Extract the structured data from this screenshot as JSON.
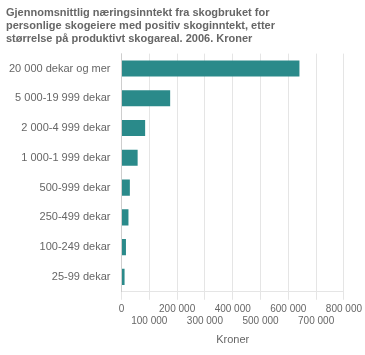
{
  "chart_data": {
    "type": "bar",
    "orientation": "horizontal",
    "title": "Gjennomsnittlig næringsinntekt fra skogbruket for\npersonlige skogeiere med positiv skoginntekt, etter\nstørrelse på produktivt skogareal. 2006. Kroner",
    "categories": [
      "20 000 dekar og mer",
      "5 000-19 999 dekar",
      "2 000-4 999 dekar",
      "1 000-1 999 dekar",
      "500-999 dekar",
      "250-499 dekar",
      "100-249 dekar",
      "25-99 dekar"
    ],
    "values": [
      640000,
      175000,
      85000,
      58000,
      30000,
      25000,
      16000,
      11000
    ],
    "color": "#2a8a8a",
    "xlabel": "Kroner",
    "xlim": [
      0,
      800000
    ],
    "xticks": [
      0,
      {
        "value": 100000,
        "label": "100 000"
      },
      {
        "value": 200000,
        "label": "200 000"
      },
      {
        "value": 300000,
        "label": "300 000"
      },
      {
        "value": 400000,
        "label": "400 000"
      },
      {
        "value": 500000,
        "label": "500 000"
      },
      {
        "value": 600000,
        "label": "600 000"
      },
      {
        "value": 700000,
        "label": "700 000"
      },
      {
        "value": 800000,
        "label": "800 000"
      }
    ],
    "grid": true
  }
}
